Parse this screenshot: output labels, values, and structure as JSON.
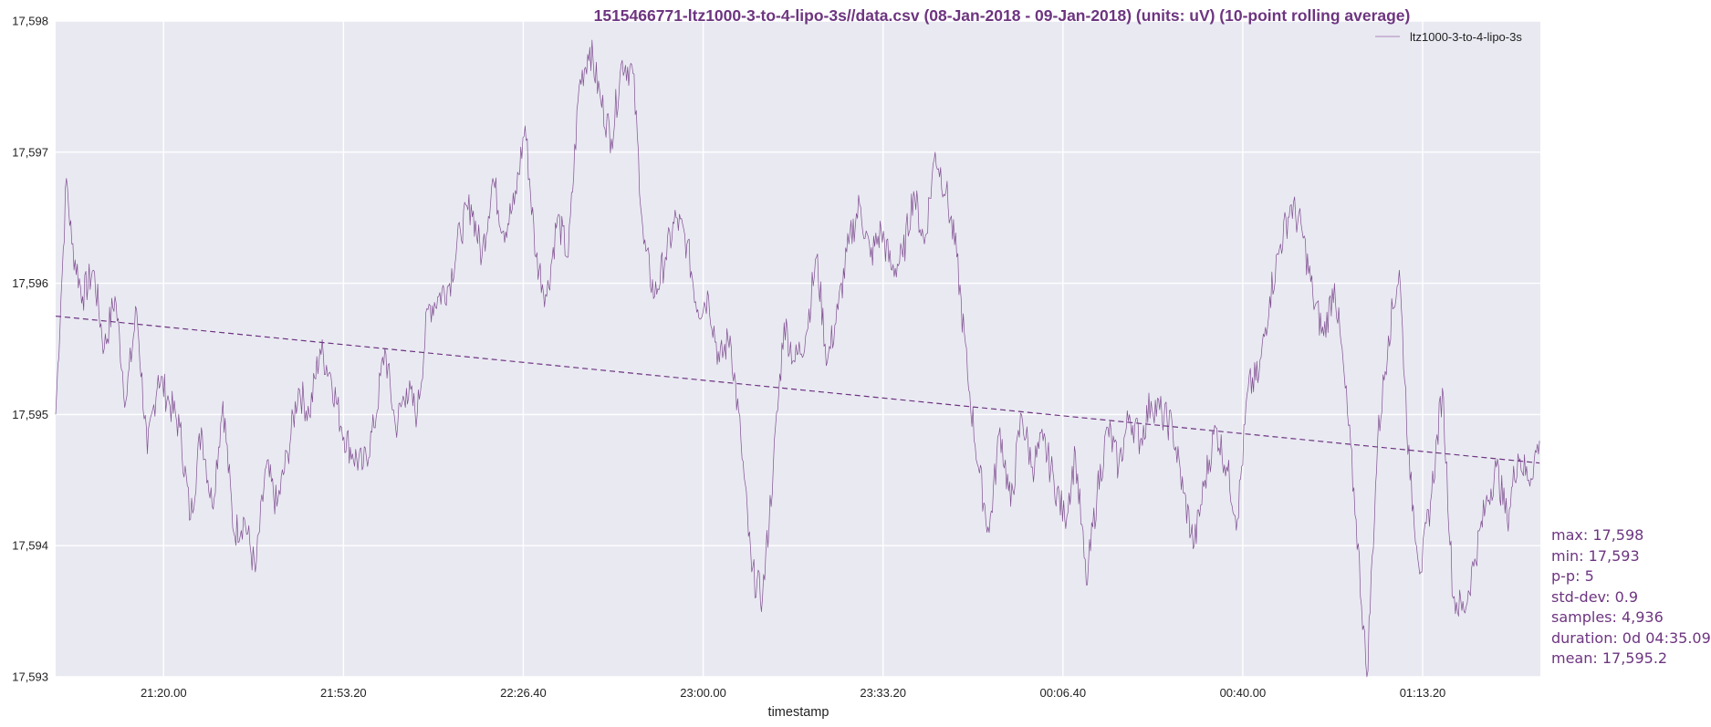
{
  "chart_data": {
    "type": "line",
    "title": "1515466771-ltz1000-3-to-4-lipo-3s//data.csv (08-Jan-2018 - 09-Jan-2018) (units: uV) (10-point rolling average)",
    "xlabel": "timestamp",
    "ylabel": "",
    "ylim": [
      17593,
      17598
    ],
    "y_ticks": [
      "17,593",
      "17,594",
      "17,595",
      "17,596",
      "17,597",
      "17,598"
    ],
    "x_ticks": [
      "21:20.00",
      "21:53.20",
      "22:26.40",
      "23:00.00",
      "23:33.20",
      "00:06.40",
      "00:40.00",
      "01:13.20"
    ],
    "x_tick_positions": [
      20,
      53.333,
      86.667,
      120,
      153.333,
      186.667,
      220,
      253.333
    ],
    "xlim": [
      0,
      275.15
    ],
    "x_unit": "minutes after first tick origin 21:00 (axis spans approx 21:00 to 01:35)",
    "grid": true,
    "legend_position": "top-right",
    "series": [
      {
        "name": "ltz1000-3-to-4-lipo-3s",
        "color": "#6d3580",
        "x": [
          0,
          1,
          2,
          3,
          5,
          7,
          9,
          11,
          13,
          15,
          17,
          19,
          21,
          23,
          25,
          27,
          29,
          31,
          33,
          35,
          37,
          39,
          41,
          43,
          45,
          47,
          49,
          51,
          53,
          55,
          57,
          59,
          61,
          63,
          65,
          67,
          69,
          71,
          73,
          75,
          77,
          79,
          81,
          83,
          85,
          87,
          89,
          91,
          93,
          95,
          97,
          99,
          101,
          103,
          105,
          107,
          109,
          111,
          113,
          115,
          117,
          119,
          121,
          123,
          125,
          127,
          129,
          131,
          133,
          135,
          137,
          139,
          141,
          143,
          145,
          147,
          149,
          151,
          153,
          155,
          157,
          159,
          161,
          163,
          165,
          167,
          169,
          171,
          173,
          175,
          177,
          179,
          181,
          183,
          185,
          187,
          189,
          191,
          193,
          195,
          197,
          199,
          201,
          203,
          205,
          207,
          209,
          211,
          213,
          215,
          217,
          219,
          221,
          223,
          225,
          227,
          229,
          231,
          233,
          235,
          237,
          239,
          241,
          243,
          245,
          247,
          249,
          251,
          253,
          255,
          257,
          259,
          261,
          263,
          265,
          267,
          269,
          271,
          273,
          275
        ],
        "y": [
          17595.0,
          17595.9,
          17596.8,
          17596.3,
          17595.9,
          17596.1,
          17595.5,
          17595.9,
          17595.1,
          17595.8,
          17594.7,
          17595.3,
          17595.1,
          17594.9,
          17594.2,
          17594.9,
          17594.3,
          17595.1,
          17594.1,
          17594.2,
          17593.8,
          17594.6,
          17594.3,
          17594.7,
          17595.2,
          17595.0,
          17595.5,
          17595.3,
          17594.9,
          17594.7,
          17594.6,
          17594.9,
          17595.5,
          17594.9,
          17595.2,
          17595.0,
          17595.8,
          17595.9,
          17596.0,
          17596.4,
          17596.6,
          17596.2,
          17596.8,
          17596.4,
          17596.6,
          17597.2,
          17596.2,
          17595.9,
          17596.5,
          17596.2,
          17597.5,
          17597.8,
          17597.4,
          17597.1,
          17597.7,
          17597.6,
          17596.3,
          17595.9,
          17596.2,
          17596.5,
          17596.3,
          17595.8,
          17595.9,
          17595.4,
          17595.6,
          17594.8,
          17593.8,
          17593.6,
          17594.6,
          17595.7,
          17595.4,
          17595.6,
          17596.2,
          17595.4,
          17595.8,
          17596.3,
          17596.6,
          17596.2,
          17596.4,
          17596.1,
          17596.2,
          17596.7,
          17596.3,
          17597.0,
          17596.7,
          17596.2,
          17595.3,
          17594.6,
          17594.1,
          17594.9,
          17594.3,
          17595.0,
          17594.6,
          17594.8,
          17594.5,
          17594.2,
          17594.7,
          17593.7,
          17594.4,
          17594.9,
          17594.6,
          17595.0,
          17594.8,
          17595.1,
          17595.0,
          17594.9,
          17594.4,
          17594.0,
          17594.5,
          17594.9,
          17594.6,
          17594.2,
          17595.2,
          17595.3,
          17595.9,
          17596.3,
          17596.6,
          17596.4,
          17595.9,
          17595.6,
          17596.0,
          17595.2,
          17594.2,
          17593.0,
          17594.8,
          17595.6,
          17596.1,
          17594.5,
          17593.8,
          17594.4,
          17595.2,
          17593.6,
          17593.5,
          17593.9,
          17594.3,
          17594.6,
          17594.2,
          17594.7,
          17594.5,
          17594.8
        ]
      },
      {
        "name": "",
        "style": "dashed",
        "color": "#6d3580",
        "x": [
          0,
          275
        ],
        "y": [
          17595.75,
          17594.63
        ]
      }
    ]
  },
  "stats": {
    "max": "max: 17,598",
    "min": "min: 17,593",
    "pp": "p-p: 5",
    "std": "std-dev: 0.9",
    "samples": "samples: 4,936",
    "duration": "duration: 0d 04:35.09",
    "mean": "mean: 17,595.2"
  }
}
